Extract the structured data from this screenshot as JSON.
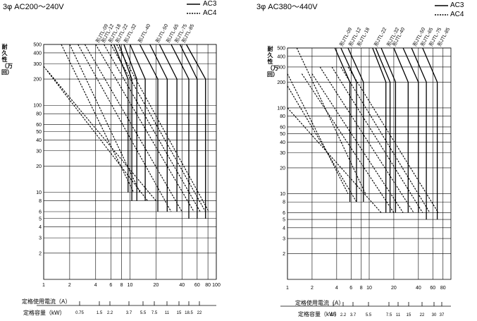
{
  "legend": {
    "ac3": "AC3",
    "ac4": "AC4"
  },
  "chart_data": [
    {
      "type": "line",
      "title": "3φ AC200～240V",
      "ylabel": "耐久性（万回）",
      "x_scale": "log",
      "y_scale": "log",
      "xlim": [
        1,
        100
      ],
      "ylim": [
        1,
        500
      ],
      "x_ticks": [
        "1",
        "2",
        "4",
        "6",
        "8",
        "10",
        "20",
        "40",
        "60",
        "80",
        "100"
      ],
      "y_ticks": [
        "500",
        "400",
        "300",
        "200",
        "100",
        "80",
        "60",
        "50",
        "40",
        "30",
        "20",
        "10",
        "8",
        "6",
        "5",
        "4",
        "3",
        "2"
      ],
      "models": [
        "形JTL-09",
        "形JTL-12",
        "形JTL-18",
        "形JTL-22",
        "形JTL-32",
        "形JTL-40",
        "形JTL-50",
        "形JTL-65",
        "形JTL-75",
        "形JTL-85"
      ],
      "series": [
        {
          "name": "AC3",
          "lines": [
            {
              "model": "形JTL-09",
              "points": [
                [
                  6.5,
                  500
                ],
                [
                  9.5,
                  200
                ],
                [
                  9.5,
                  10
                ]
              ]
            },
            {
              "model": "形JTL-12",
              "points": [
                [
                  7.5,
                  500
                ],
                [
                  10.5,
                  200
                ],
                [
                  10.5,
                  8
                ]
              ]
            },
            {
              "model": "形JTL-18",
              "points": [
                [
                  8.5,
                  500
                ],
                [
                  12,
                  200
                ],
                [
                  12,
                  8
                ]
              ]
            },
            {
              "model": "形JTL-22",
              "points": [
                [
                  10,
                  500
                ],
                [
                  15,
                  200
                ],
                [
                  15,
                  8
                ]
              ]
            },
            {
              "model": "形JTL-32",
              "points": [
                [
                  13,
                  500
                ],
                [
                  21,
                  200
                ],
                [
                  21,
                  6
                ]
              ]
            },
            {
              "model": "形JTL-40",
              "points": [
                [
                  17,
                  500
                ],
                [
                  27,
                  200
                ],
                [
                  27,
                  6
                ]
              ]
            },
            {
              "model": "形JTL-50",
              "points": [
                [
                  22,
                  500
                ],
                [
                  35,
                  200
                ],
                [
                  35,
                  6
                ]
              ]
            },
            {
              "model": "形JTL-65",
              "points": [
                [
                  30,
                  500
                ],
                [
                  48,
                  200
                ],
                [
                  48,
                  5
                ]
              ]
            },
            {
              "model": "形JTL-75",
              "points": [
                [
                  38,
                  500
                ],
                [
                  60,
                  200
                ],
                [
                  60,
                  5
                ]
              ]
            },
            {
              "model": "形JTL-85",
              "points": [
                [
                  45,
                  500
                ],
                [
                  75,
                  200
                ],
                [
                  75,
                  5
                ]
              ]
            }
          ]
        },
        {
          "name": "AC4",
          "lines": [
            {
              "model": "形JTL-09",
              "points": [
                [
                  1.6,
                  500
                ],
                [
                  11,
                  10
                ]
              ]
            },
            {
              "model": "形JTL-12",
              "points": [
                [
                  2.0,
                  500
                ],
                [
                  13,
                  10
                ]
              ]
            },
            {
              "model": "形JTL-18",
              "points": [
                [
                  1.0,
                  280
                ],
                [
                  16,
                  8
                ]
              ]
            },
            {
              "model": "形JTL-22",
              "points": [
                [
                  1.1,
                  250
                ],
                [
                  20,
                  8
                ]
              ]
            },
            {
              "model": "形JTL-32",
              "points": [
                [
                  2.5,
                  500
                ],
                [
                  30,
                  6
                ]
              ]
            },
            {
              "model": "形JTL-40",
              "points": [
                [
                  3.0,
                  500
                ],
                [
                  40,
                  6
                ]
              ]
            },
            {
              "model": "形JTL-50",
              "points": [
                [
                  4.0,
                  500
                ],
                [
                  55,
                  6
                ]
              ]
            },
            {
              "model": "形JTL-65",
              "points": [
                [
                  5.0,
                  500
                ],
                [
                  65,
                  6
                ]
              ]
            },
            {
              "model": "形JTL-75",
              "points": [
                [
                  6.0,
                  500
                ],
                [
                  75,
                  6
                ]
              ]
            },
            {
              "model": "形JTL-85",
              "points": [
                [
                  7.0,
                  500
                ],
                [
                  82,
                  6
                ]
              ]
            }
          ]
        }
      ],
      "bottom_scales": [
        {
          "label": "定格使用電流（A）",
          "ticks": []
        },
        {
          "label": "定格容量（kW）",
          "ticks": [
            "0.75",
            "1.5",
            "2.2",
            "3.7",
            "5.5",
            "7.5",
            "11",
            "15",
            "18.5",
            "22"
          ]
        }
      ]
    },
    {
      "type": "line",
      "title": "3φ AC380～440V",
      "ylabel": "耐久性（万回）",
      "x_scale": "log",
      "y_scale": "log",
      "xlim": [
        1,
        100
      ],
      "ylim": [
        1,
        500
      ],
      "x_ticks": [
        "1",
        "2",
        "4",
        "6",
        "8",
        "10",
        "20",
        "40",
        "60",
        "80"
      ],
      "y_ticks": [
        "500",
        "400",
        "300",
        "200",
        "100",
        "80",
        "60",
        "50",
        "40",
        "30",
        "20",
        "10",
        "8",
        "6",
        "5",
        "4",
        "3",
        "2"
      ],
      "models": [
        "形JTL-09",
        "形JTL-12",
        "形JTL-18",
        "形JTL-22",
        "形JTL-32",
        "形JTL-40",
        "形JTL-50",
        "形JTL-65",
        "形JTL-75",
        "形JTL-85"
      ],
      "series": [
        {
          "name": "AC3",
          "lines": [
            {
              "model": "形JTL-09",
              "points": [
                [
                  3.8,
                  500
                ],
                [
                  5.8,
                  200
                ],
                [
                  5.8,
                  8
                ]
              ]
            },
            {
              "model": "形JTL-12",
              "points": [
                [
                  4.5,
                  500
                ],
                [
                  7,
                  200
                ],
                [
                  7,
                  8
                ]
              ]
            },
            {
              "model": "形JTL-18",
              "points": [
                [
                  5.5,
                  500
                ],
                [
                  8.5,
                  200
                ],
                [
                  8.5,
                  8
                ]
              ]
            },
            {
              "model": "形JTL-22",
              "points": [
                [
                  11,
                  500
                ],
                [
                  16,
                  200
                ],
                [
                  16,
                  6
                ]
              ]
            },
            {
              "model": "形JTL-32",
              "points": [
                [
                  12,
                  500
                ],
                [
                  18,
                  200
                ],
                [
                  18,
                  6
                ]
              ]
            },
            {
              "model": "形JTL-40",
              "points": [
                [
                  14,
                  500
                ],
                [
                  21,
                  200
                ],
                [
                  21,
                  6
                ]
              ]
            },
            {
              "model": "形JTL-50",
              "points": [
                [
                  20,
                  500
                ],
                [
                  30,
                  200
                ],
                [
                  30,
                  6
                ]
              ]
            },
            {
              "model": "形JTL-65",
              "points": [
                [
                  26,
                  500
                ],
                [
                  40,
                  200
                ],
                [
                  40,
                  6
                ]
              ]
            },
            {
              "model": "形JTL-75",
              "points": [
                [
                  33,
                  500
                ],
                [
                  50,
                  200
                ],
                [
                  50,
                  5
                ]
              ]
            },
            {
              "model": "形JTL-85",
              "points": [
                [
                  45,
                  500
                ],
                [
                  68,
                  200
                ],
                [
                  68,
                  5
                ]
              ]
            }
          ]
        },
        {
          "name": "AC4",
          "lines": [
            {
              "model": "形JTL-09",
              "points": [
                [
                  1.0,
                  250
                ],
                [
                  5.5,
                  10
                ]
              ]
            },
            {
              "model": "形JTL-12",
              "points": [
                [
                  1.0,
                  180
                ],
                [
                  7,
                  8
                ]
              ]
            },
            {
              "model": "形JTL-18",
              "points": [
                [
                  1.3,
                  500
                ],
                [
                  9,
                  10
                ]
              ]
            },
            {
              "model": "形JTL-22",
              "points": [
                [
                  1.0,
                  100
                ],
                [
                  14,
                  6
                ]
              ]
            },
            {
              "model": "形JTL-32",
              "points": [
                [
                  1.5,
                  250
                ],
                [
                  20,
                  6
                ]
              ]
            },
            {
              "model": "形JTL-40",
              "points": [
                [
                  2.0,
                  250
                ],
                [
                  26,
                  6
                ]
              ]
            },
            {
              "model": "形JTL-50",
              "points": [
                [
                  2.5,
                  300
                ],
                [
                  35,
                  6
                ]
              ]
            },
            {
              "model": "形JTL-65",
              "points": [
                [
                  3.5,
                  300
                ],
                [
                  45,
                  6
                ]
              ]
            },
            {
              "model": "形JTL-75",
              "points": [
                [
                  4.5,
                  300
                ],
                [
                  55,
                  6
                ]
              ]
            },
            {
              "model": "形JTL-85",
              "points": [
                [
                  5.5,
                  300
                ],
                [
                  70,
                  6
                ]
              ]
            }
          ]
        }
      ],
      "bottom_scales": [
        {
          "label": "定格使用電流（A）",
          "ticks": []
        },
        {
          "label": "定格容量（kW）",
          "ticks": [
            "1.5",
            "2.2",
            "3.7",
            "5.5",
            "7.5",
            "11",
            "15",
            "22",
            "30",
            "37"
          ]
        }
      ]
    }
  ]
}
